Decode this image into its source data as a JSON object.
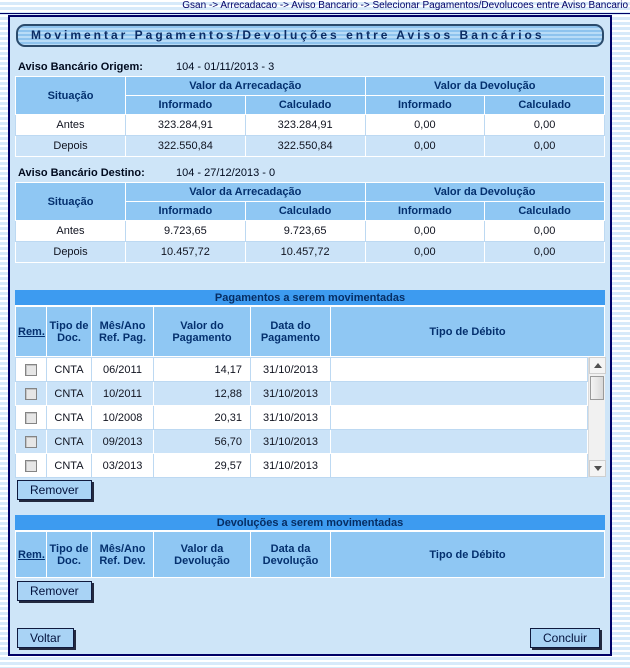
{
  "breadcrumb": "Gsan -> Arrecadacao -> Aviso Bancario -> Selecionar Pagamentos/Devolucoes entre Aviso Bancario",
  "title": "Movimentar Pagamentos/Devoluções entre Avisos Bancários",
  "labels": {
    "situacao": "Situação",
    "valor_arrecadacao": "Valor da Arrecadação",
    "valor_devolucao": "Valor da Devolução",
    "informado": "Informado",
    "calculado": "Calculado",
    "antes": "Antes",
    "depois": "Depois",
    "remover": "Remover",
    "voltar": "Voltar",
    "concluir": "Concluir"
  },
  "origem": {
    "label": "Aviso Bancário Origem:",
    "value": "104 - 01/11/2013 - 3",
    "antes": {
      "arr_inf": "323.284,91",
      "arr_calc": "323.284,91",
      "dev_inf": "0,00",
      "dev_calc": "0,00"
    },
    "depois": {
      "arr_inf": "322.550,84",
      "arr_calc": "322.550,84",
      "dev_inf": "0,00",
      "dev_calc": "0,00"
    }
  },
  "destino": {
    "label": "Aviso Bancário Destino:",
    "value": "104 - 27/12/2013 - 0",
    "antes": {
      "arr_inf": "9.723,65",
      "arr_calc": "9.723,65",
      "dev_inf": "0,00",
      "dev_calc": "0,00"
    },
    "depois": {
      "arr_inf": "10.457,72",
      "arr_calc": "10.457,72",
      "dev_inf": "0,00",
      "dev_calc": "0,00"
    }
  },
  "pagamentos": {
    "title": "Pagamentos a serem movimentadas",
    "headers": {
      "rem": "Rem.",
      "tipo_doc": "Tipo de Doc.",
      "mes_ano": "Mês/Ano Ref. Pag.",
      "valor": "Valor do Pagamento",
      "data": "Data do Pagamento",
      "tipo_debito": "Tipo de Débito"
    },
    "rows": [
      {
        "tipo_doc": "CNTA",
        "mes_ano": "06/2011",
        "valor": "14,17",
        "data": "31/10/2013",
        "tipo_debito": ""
      },
      {
        "tipo_doc": "CNTA",
        "mes_ano": "10/2011",
        "valor": "12,88",
        "data": "31/10/2013",
        "tipo_debito": ""
      },
      {
        "tipo_doc": "CNTA",
        "mes_ano": "10/2008",
        "valor": "20,31",
        "data": "31/10/2013",
        "tipo_debito": ""
      },
      {
        "tipo_doc": "CNTA",
        "mes_ano": "09/2013",
        "valor": "56,70",
        "data": "31/10/2013",
        "tipo_debito": ""
      },
      {
        "tipo_doc": "CNTA",
        "mes_ano": "03/2013",
        "valor": "29,57",
        "data": "31/10/2013",
        "tipo_debito": ""
      }
    ]
  },
  "devolucoes": {
    "title": "Devoluções a serem movimentadas",
    "headers": {
      "rem": "Rem.",
      "tipo_doc": "Tipo de Doc.",
      "mes_ano": "Mês/Ano Ref. Dev.",
      "valor": "Valor da Devolução",
      "data": "Data da Devolução",
      "tipo_debito": "Tipo de Débito"
    },
    "rows": []
  },
  "colors": {
    "section_bar_blue": "#3d9bf0",
    "table_header_blue": "#8fc7f3",
    "panel_background": "#cee5f8",
    "row_alt_blue": "#cbe3f8",
    "border_navy": "#000066"
  }
}
